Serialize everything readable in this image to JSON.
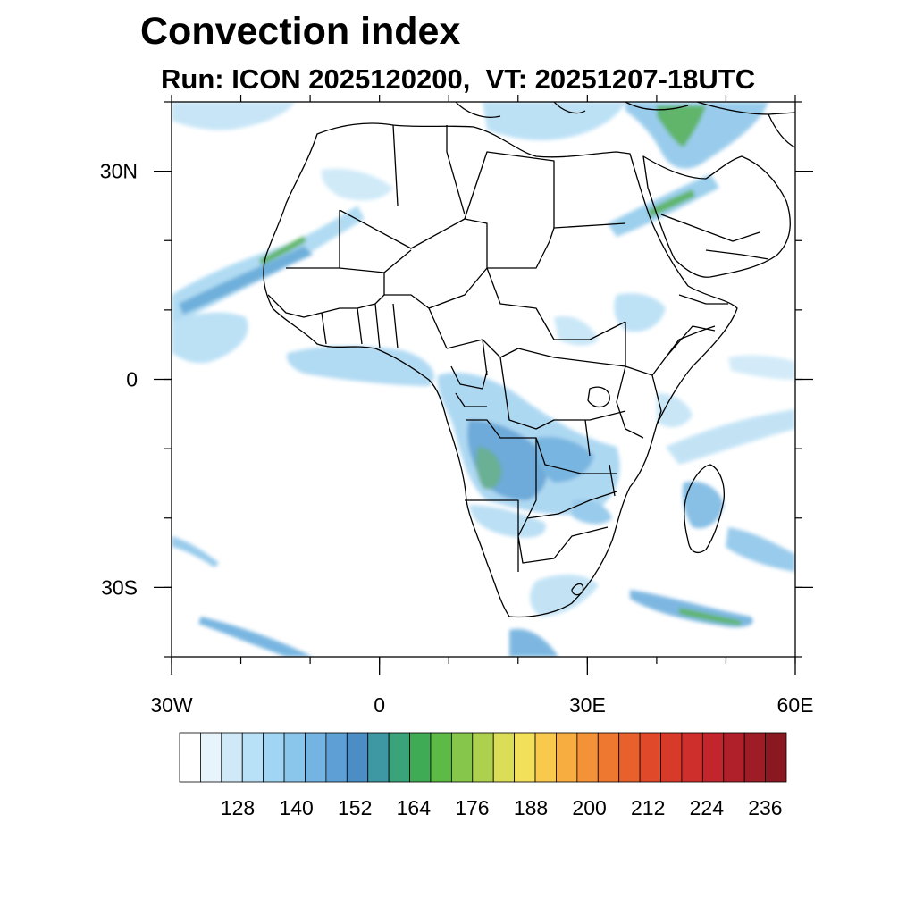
{
  "title": "Convection index",
  "subtitle": "Run: ICON 2025120200,  VT: 20251207-18UTC",
  "map": {
    "extent": {
      "lon_min": -30,
      "lon_max": 60,
      "lat_min": -40,
      "lat_max": 40
    },
    "x_ticks": [
      {
        "lon": -30,
        "label": "30W"
      },
      {
        "lon": 0,
        "label": "0"
      },
      {
        "lon": 30,
        "label": "30E"
      },
      {
        "lon": 60,
        "label": "60E"
      }
    ],
    "y_ticks": [
      {
        "lat": 30,
        "label": "30N"
      },
      {
        "lat": 0,
        "label": "0"
      },
      {
        "lat": -30,
        "label": "30S"
      }
    ]
  },
  "colorbar": {
    "tick_labels": [
      "128",
      "140",
      "152",
      "164",
      "176",
      "188",
      "200",
      "212",
      "224",
      "236"
    ],
    "colors": [
      "#ffffff",
      "#e8f4fc",
      "#cfe9f8",
      "#b8e0f6",
      "#a0d6f3",
      "#8ac6ec",
      "#74b4e2",
      "#5e9fd6",
      "#4a8ec5",
      "#3e98a3",
      "#3aa37a",
      "#3fac55",
      "#5cba45",
      "#86c74b",
      "#aed04f",
      "#dadd55",
      "#f2e05a",
      "#f8c94d",
      "#f8ad40",
      "#f39236",
      "#ee7830",
      "#e8602b",
      "#e04a2a",
      "#d83a2a",
      "#cf2f2c",
      "#c2252c",
      "#b0202a",
      "#9e1c25",
      "#8a1820"
    ]
  }
}
